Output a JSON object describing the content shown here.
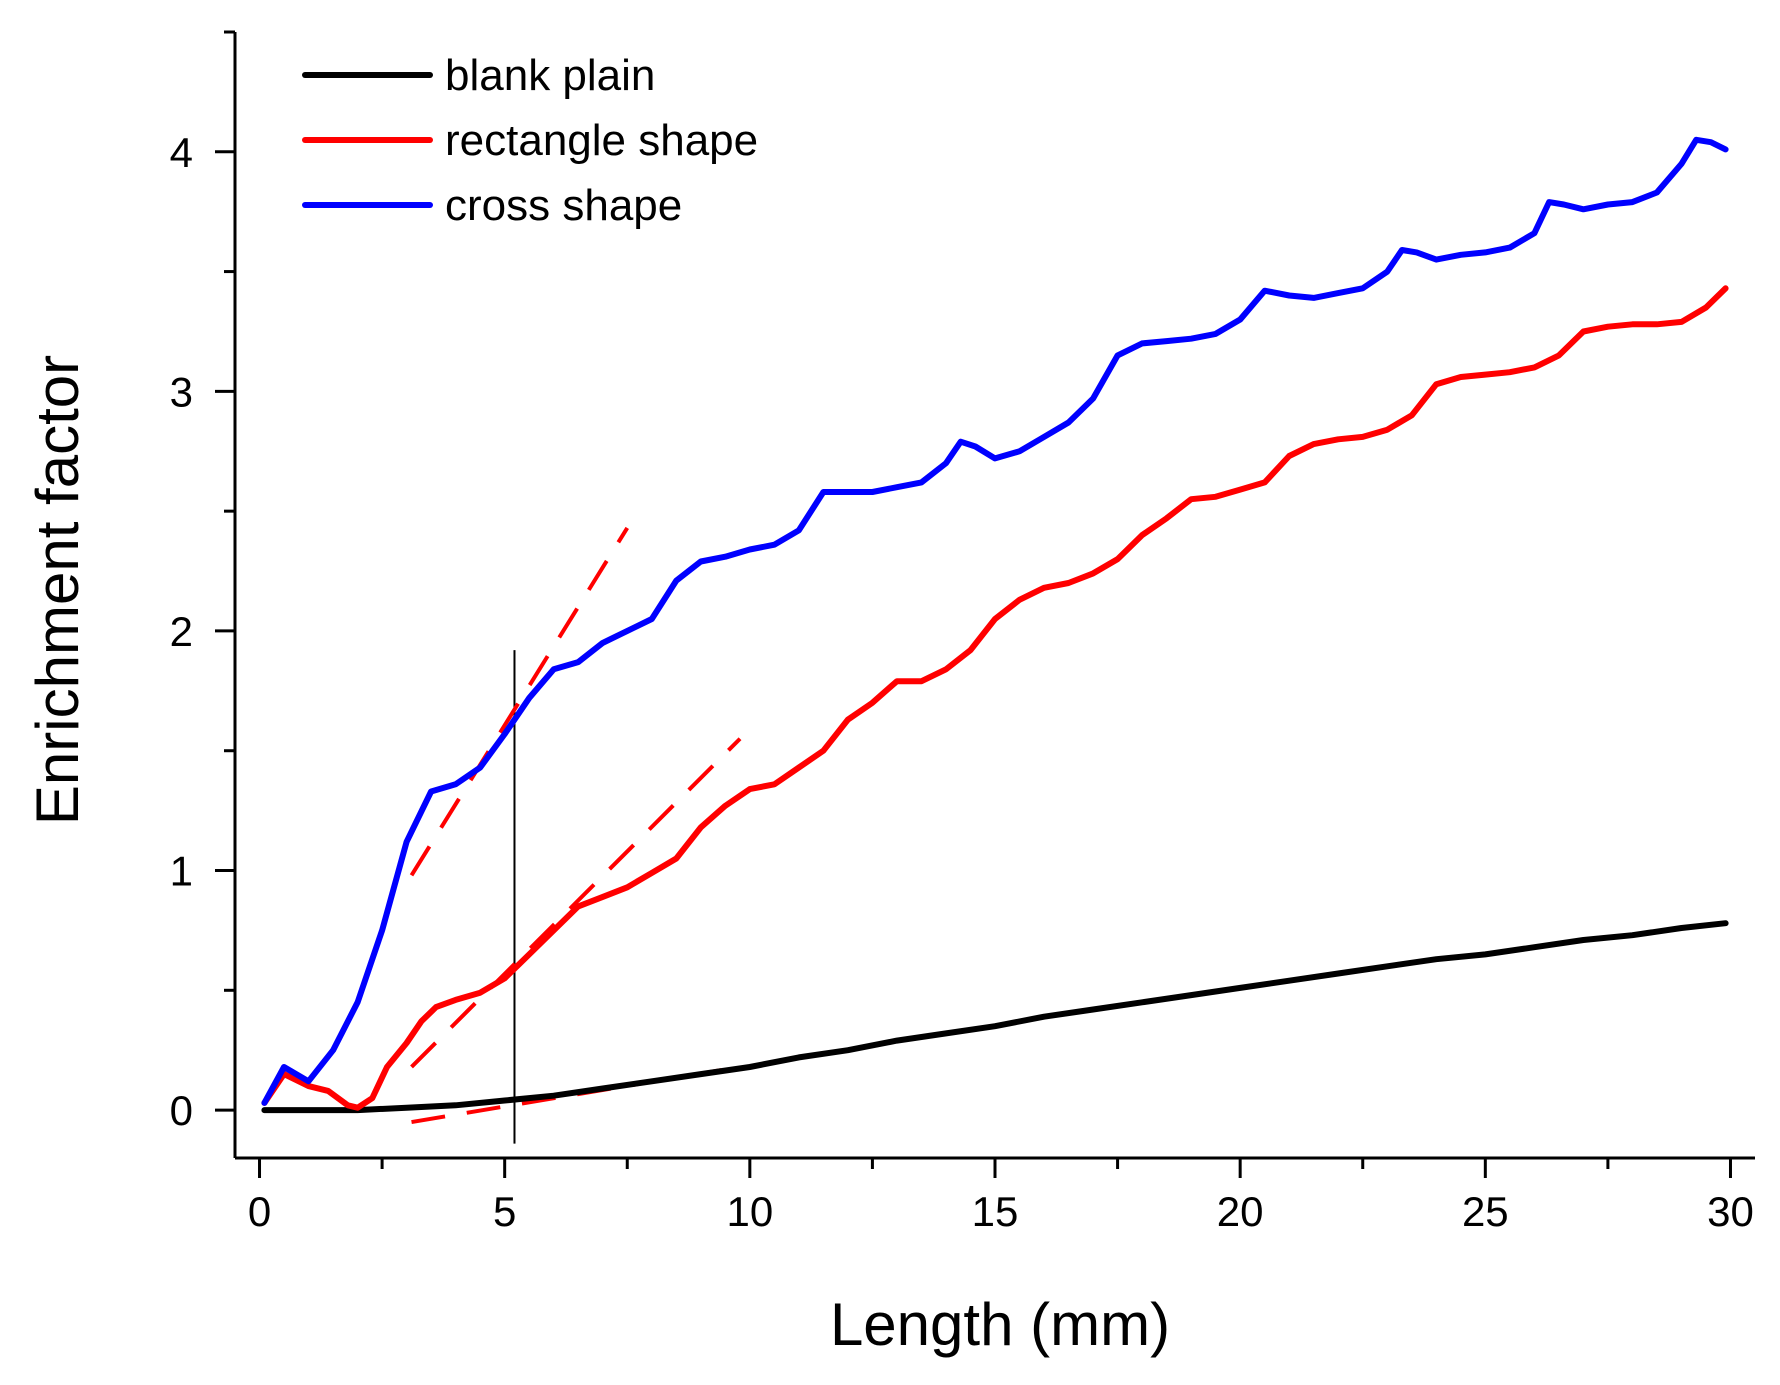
{
  "chart_data": {
    "type": "line",
    "title": "",
    "xlabel": "Length (mm)",
    "ylabel": "Enrichment factor",
    "xlim": [
      -0.5,
      30.5
    ],
    "ylim": [
      -0.2,
      4.5
    ],
    "xticks": [
      0,
      5,
      10,
      15,
      20,
      25,
      30
    ],
    "yticks": [
      0,
      1,
      2,
      3,
      4
    ],
    "x_minor_step": 2.5,
    "y_minor_step": 0.5,
    "legend": "top-left",
    "series": [
      {
        "name": "blank plain",
        "color": "#000000",
        "points": [
          [
            0.1,
            0
          ],
          [
            1,
            0
          ],
          [
            2,
            0
          ],
          [
            3,
            0.01
          ],
          [
            4,
            0.02
          ],
          [
            5,
            0.04
          ],
          [
            6,
            0.06
          ],
          [
            7,
            0.09
          ],
          [
            8,
            0.12
          ],
          [
            9,
            0.15
          ],
          [
            10,
            0.18
          ],
          [
            11,
            0.22
          ],
          [
            12,
            0.25
          ],
          [
            13,
            0.29
          ],
          [
            14,
            0.32
          ],
          [
            15,
            0.35
          ],
          [
            16,
            0.39
          ],
          [
            17,
            0.42
          ],
          [
            18,
            0.45
          ],
          [
            19,
            0.48
          ],
          [
            20,
            0.51
          ],
          [
            21,
            0.54
          ],
          [
            22,
            0.57
          ],
          [
            23,
            0.6
          ],
          [
            24,
            0.63
          ],
          [
            25,
            0.65
          ],
          [
            26,
            0.68
          ],
          [
            27,
            0.71
          ],
          [
            28,
            0.73
          ],
          [
            29,
            0.76
          ],
          [
            29.9,
            0.78
          ]
        ]
      },
      {
        "name": "rectangle shape",
        "color": "#ff0000",
        "points": [
          [
            0.1,
            0.03
          ],
          [
            0.5,
            0.15
          ],
          [
            1,
            0.1
          ],
          [
            1.4,
            0.08
          ],
          [
            1.8,
            0.02
          ],
          [
            2,
            0.01
          ],
          [
            2.3,
            0.05
          ],
          [
            2.6,
            0.18
          ],
          [
            3,
            0.28
          ],
          [
            3.3,
            0.37
          ],
          [
            3.6,
            0.43
          ],
          [
            4,
            0.46
          ],
          [
            4.5,
            0.49
          ],
          [
            5,
            0.55
          ],
          [
            5.5,
            0.65
          ],
          [
            6,
            0.75
          ],
          [
            6.5,
            0.85
          ],
          [
            7,
            0.89
          ],
          [
            7.5,
            0.93
          ],
          [
            8,
            0.99
          ],
          [
            8.5,
            1.05
          ],
          [
            9,
            1.18
          ],
          [
            9.5,
            1.27
          ],
          [
            10,
            1.34
          ],
          [
            10.5,
            1.36
          ],
          [
            11,
            1.43
          ],
          [
            11.5,
            1.5
          ],
          [
            12,
            1.63
          ],
          [
            12.5,
            1.7
          ],
          [
            13,
            1.79
          ],
          [
            13.5,
            1.79
          ],
          [
            14,
            1.84
          ],
          [
            14.5,
            1.92
          ],
          [
            15,
            2.05
          ],
          [
            15.5,
            2.13
          ],
          [
            16,
            2.18
          ],
          [
            16.5,
            2.2
          ],
          [
            17,
            2.24
          ],
          [
            17.5,
            2.3
          ],
          [
            18,
            2.4
          ],
          [
            18.5,
            2.47
          ],
          [
            19,
            2.55
          ],
          [
            19.5,
            2.56
          ],
          [
            20,
            2.59
          ],
          [
            20.5,
            2.62
          ],
          [
            21,
            2.73
          ],
          [
            21.5,
            2.78
          ],
          [
            22,
            2.8
          ],
          [
            22.5,
            2.81
          ],
          [
            23,
            2.84
          ],
          [
            23.5,
            2.9
          ],
          [
            24,
            3.03
          ],
          [
            24.5,
            3.06
          ],
          [
            25,
            3.07
          ],
          [
            25.5,
            3.08
          ],
          [
            26,
            3.1
          ],
          [
            26.5,
            3.15
          ],
          [
            27,
            3.25
          ],
          [
            27.5,
            3.27
          ],
          [
            28,
            3.28
          ],
          [
            28.5,
            3.28
          ],
          [
            29,
            3.29
          ],
          [
            29.5,
            3.35
          ],
          [
            29.9,
            3.43
          ]
        ]
      },
      {
        "name": "cross shape",
        "color": "#0000ff",
        "points": [
          [
            0.1,
            0.03
          ],
          [
            0.5,
            0.18
          ],
          [
            1,
            0.12
          ],
          [
            1.5,
            0.25
          ],
          [
            2,
            0.45
          ],
          [
            2.5,
            0.75
          ],
          [
            3,
            1.12
          ],
          [
            3.5,
            1.33
          ],
          [
            4,
            1.36
          ],
          [
            4.5,
            1.43
          ],
          [
            5,
            1.57
          ],
          [
            5.5,
            1.72
          ],
          [
            6,
            1.84
          ],
          [
            6.5,
            1.87
          ],
          [
            7,
            1.95
          ],
          [
            7.5,
            2.0
          ],
          [
            8,
            2.05
          ],
          [
            8.5,
            2.21
          ],
          [
            9,
            2.29
          ],
          [
            9.5,
            2.31
          ],
          [
            10,
            2.34
          ],
          [
            10.5,
            2.36
          ],
          [
            11,
            2.42
          ],
          [
            11.5,
            2.58
          ],
          [
            12,
            2.58
          ],
          [
            12.5,
            2.58
          ],
          [
            13,
            2.6
          ],
          [
            13.5,
            2.62
          ],
          [
            14,
            2.7
          ],
          [
            14.3,
            2.79
          ],
          [
            14.6,
            2.77
          ],
          [
            15,
            2.72
          ],
          [
            15.5,
            2.75
          ],
          [
            16,
            2.81
          ],
          [
            16.5,
            2.87
          ],
          [
            17,
            2.97
          ],
          [
            17.5,
            3.15
          ],
          [
            18,
            3.2
          ],
          [
            18.5,
            3.21
          ],
          [
            19,
            3.22
          ],
          [
            19.5,
            3.24
          ],
          [
            20,
            3.3
          ],
          [
            20.5,
            3.42
          ],
          [
            21,
            3.4
          ],
          [
            21.5,
            3.39
          ],
          [
            22,
            3.41
          ],
          [
            22.5,
            3.43
          ],
          [
            23,
            3.5
          ],
          [
            23.3,
            3.59
          ],
          [
            23.6,
            3.58
          ],
          [
            24,
            3.55
          ],
          [
            24.5,
            3.57
          ],
          [
            25,
            3.58
          ],
          [
            25.5,
            3.6
          ],
          [
            26,
            3.66
          ],
          [
            26.3,
            3.79
          ],
          [
            26.6,
            3.78
          ],
          [
            27,
            3.76
          ],
          [
            27.5,
            3.78
          ],
          [
            28,
            3.79
          ],
          [
            28.5,
            3.83
          ],
          [
            29,
            3.95
          ],
          [
            29.3,
            4.05
          ],
          [
            29.6,
            4.04
          ],
          [
            29.9,
            4.01
          ]
        ]
      }
    ],
    "annotations": {
      "vertical_line": {
        "x": 5.2,
        "y_from": -0.14,
        "y_to": 1.92
      },
      "fit_lines": [
        {
          "from": [
            3.1,
            0.98
          ],
          "to": [
            7.5,
            2.43
          ]
        },
        {
          "from": [
            3.1,
            0.18
          ],
          "to": [
            9.8,
            1.55
          ]
        },
        {
          "from": [
            3.1,
            -0.05
          ],
          "to": [
            9.8,
            0.18
          ]
        }
      ],
      "fit_line_color": "#ff0000"
    }
  }
}
